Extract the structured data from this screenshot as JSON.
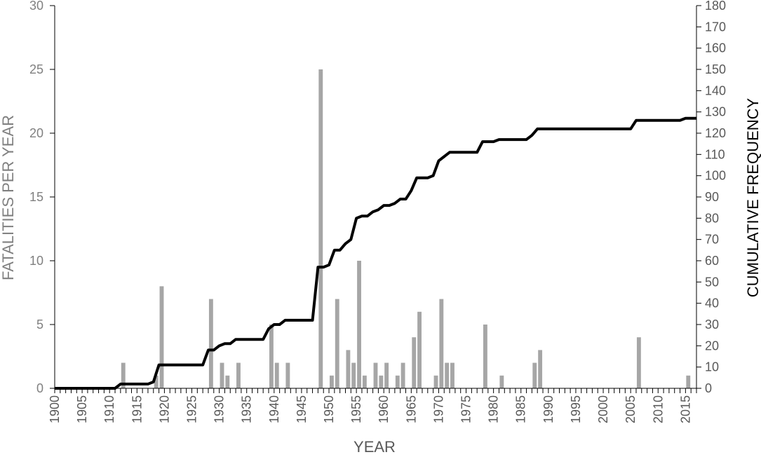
{
  "chart_data": {
    "type": "bar",
    "title": "",
    "xlabel": "YEAR",
    "ylabel": "FATALITIES PER YEAR",
    "y2label": "CUMULATIVE FREQUENCY",
    "xlim": [
      1900,
      2017
    ],
    "ylim": [
      0,
      30
    ],
    "y2lim": [
      0,
      180
    ],
    "x_ticks": [
      1900,
      1905,
      1910,
      1915,
      1920,
      1925,
      1930,
      1935,
      1940,
      1945,
      1950,
      1955,
      1960,
      1965,
      1970,
      1975,
      1980,
      1985,
      1990,
      1995,
      2000,
      2005,
      2010,
      2015
    ],
    "y_ticks": [
      0,
      5,
      10,
      15,
      20,
      25,
      30
    ],
    "y2_ticks": [
      0,
      10,
      20,
      30,
      40,
      50,
      60,
      70,
      80,
      90,
      100,
      110,
      120,
      130,
      140,
      150,
      160,
      170,
      180
    ],
    "grid": false,
    "colors": {
      "bars": "#a6a6a6",
      "line": "#000000",
      "left_axis_text": "#808080",
      "right_axis_text": "#595959"
    },
    "series": [
      {
        "type": "bar",
        "axis": "left",
        "x": [
          1912,
          1918,
          1919,
          1928,
          1930,
          1931,
          1933,
          1939,
          1940,
          1942,
          1948,
          1950,
          1951,
          1953,
          1954,
          1955,
          1956,
          1958,
          1959,
          1960,
          1962,
          1963,
          1965,
          1966,
          1969,
          1970,
          1971,
          1972,
          1978,
          1981,
          1987,
          1988,
          2006,
          2015
        ],
        "values": [
          2,
          1,
          8,
          7,
          2,
          1,
          2,
          5,
          2,
          2,
          25,
          1,
          7,
          3,
          2,
          10,
          1,
          2,
          1,
          2,
          1,
          2,
          4,
          6,
          1,
          7,
          2,
          2,
          5,
          1,
          2,
          3,
          4,
          1
        ]
      },
      {
        "type": "line",
        "axis": "right",
        "x": [
          1900,
          1911,
          1912,
          1917,
          1918,
          1919,
          1927,
          1928,
          1929,
          1930,
          1931,
          1932,
          1933,
          1938,
          1939,
          1940,
          1941,
          1942,
          1947,
          1948,
          1949,
          1950,
          1951,
          1952,
          1953,
          1954,
          1955,
          1956,
          1957,
          1958,
          1959,
          1960,
          1961,
          1962,
          1963,
          1964,
          1965,
          1966,
          1968,
          1969,
          1970,
          1971,
          1972,
          1977,
          1978,
          1980,
          1981,
          1986,
          1987,
          1988,
          2005,
          2006,
          2014,
          2015,
          2017
        ],
        "values": [
          0,
          0,
          2,
          2,
          3,
          11,
          11,
          18,
          18,
          20,
          21,
          21,
          23,
          23,
          28,
          30,
          30,
          32,
          32,
          57,
          57,
          58,
          65,
          65,
          68,
          70,
          80,
          81,
          81,
          83,
          84,
          86,
          86,
          87,
          89,
          89,
          93,
          99,
          99,
          100,
          107,
          109,
          111,
          111,
          116,
          116,
          117,
          117,
          119,
          122,
          122,
          126,
          126,
          127,
          127
        ]
      }
    ]
  }
}
